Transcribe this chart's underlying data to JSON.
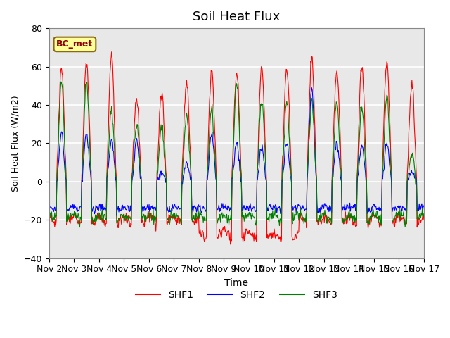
{
  "title": "Soil Heat Flux",
  "ylabel": "Soil Heat Flux (W/m2)",
  "xlabel": "Time",
  "legend_label": "BC_met",
  "series": [
    "SHF1",
    "SHF2",
    "SHF3"
  ],
  "colors": [
    "red",
    "blue",
    "green"
  ],
  "ylim": [
    -40,
    80
  ],
  "xtick_labels": [
    "Nov 2",
    "Nov 3",
    "Nov 4",
    "Nov 5",
    "Nov 6",
    "Nov 7",
    "Nov 8",
    "Nov 9",
    "Nov 10",
    "Nov 11",
    "Nov 12",
    "Nov 13",
    "Nov 14",
    "Nov 15",
    "Nov 16",
    "Nov 17"
  ],
  "bg_color": "#e8e8e8",
  "grid_color": "white",
  "legend_box_facecolor": "#ffff99",
  "legend_box_edgecolor": "#8B6914",
  "n_days": 15,
  "pts_per_day": 48
}
